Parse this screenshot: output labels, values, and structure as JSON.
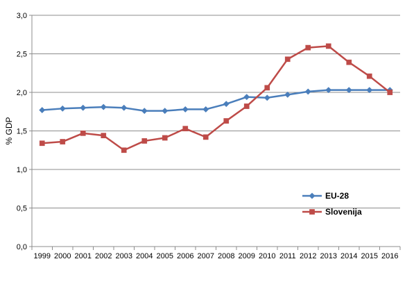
{
  "chart_data": {
    "type": "line",
    "title": "",
    "xlabel": "",
    "ylabel": "% GDP",
    "ylim": [
      0,
      3.0
    ],
    "yticks": [
      "0,0",
      "0,5",
      "1,0",
      "1,5",
      "2,0",
      "2,5",
      "3,0"
    ],
    "grid": "horizontal",
    "legend_position": "lower-right",
    "x": [
      "1999",
      "2000",
      "2001",
      "2002",
      "2003",
      "2004",
      "2005",
      "2006",
      "2007",
      "2008",
      "2009",
      "2010",
      "2011",
      "2012",
      "2013",
      "2014",
      "2015",
      "2016"
    ],
    "series": [
      {
        "name": "EU-28",
        "color": "#4a7ebb",
        "marker": "diamond",
        "values": [
          1.77,
          1.79,
          1.8,
          1.81,
          1.8,
          1.76,
          1.76,
          1.78,
          1.78,
          1.85,
          1.94,
          1.93,
          1.97,
          2.01,
          2.03,
          2.03,
          2.03,
          2.03
        ]
      },
      {
        "name": "Slovenija",
        "color": "#be4b48",
        "marker": "square",
        "values": [
          1.34,
          1.36,
          1.47,
          1.44,
          1.25,
          1.37,
          1.41,
          1.53,
          1.42,
          1.63,
          1.82,
          2.06,
          2.43,
          2.58,
          2.6,
          2.39,
          2.21,
          2.0
        ]
      }
    ]
  }
}
